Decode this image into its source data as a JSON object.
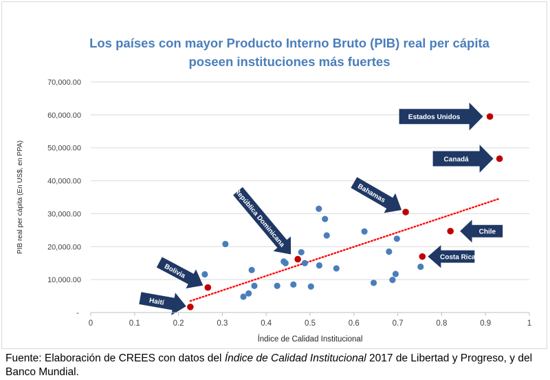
{
  "chart_data": {
    "type": "scatter",
    "title": [
      "Los países con mayor Producto Interno Bruto (PIB) real per cápita",
      "poseen instituciones más fuertes"
    ],
    "xlabel": "Índice de Calidad Institucional",
    "ylabel": "PIB real per cápita (En US$, en PPA)",
    "xlim": [
      0,
      1
    ],
    "ylim": [
      0,
      70000
    ],
    "x_ticks": [
      "0",
      "0.1",
      "0.2",
      "0.3",
      "0.4",
      "0.5",
      "0.6",
      "0.7",
      "0.8",
      "0.9",
      "1"
    ],
    "y_ticks": [
      "-",
      "10,000.00",
      "20,000.00",
      "30,000.00",
      "40,000.00",
      "50,000.00",
      "60,000.00",
      "70,000.00"
    ],
    "grid": "horizontal",
    "colors": {
      "series": "#4a7ebb",
      "highlight": "#c00000",
      "trend": "#ff0000",
      "arrow": "#1f3864",
      "title": "#4a7ebb"
    },
    "points": [
      {
        "x": 0.26,
        "y": 11600
      },
      {
        "x": 0.307,
        "y": 20800
      },
      {
        "x": 0.348,
        "y": 4800
      },
      {
        "x": 0.36,
        "y": 5800
      },
      {
        "x": 0.367,
        "y": 12900
      },
      {
        "x": 0.373,
        "y": 8100
      },
      {
        "x": 0.425,
        "y": 8100
      },
      {
        "x": 0.44,
        "y": 15500
      },
      {
        "x": 0.444,
        "y": 15000
      },
      {
        "x": 0.462,
        "y": 8500
      },
      {
        "x": 0.48,
        "y": 18300
      },
      {
        "x": 0.488,
        "y": 15000
      },
      {
        "x": 0.502,
        "y": 7900
      },
      {
        "x": 0.52,
        "y": 31500
      },
      {
        "x": 0.521,
        "y": 14300
      },
      {
        "x": 0.534,
        "y": 28400
      },
      {
        "x": 0.538,
        "y": 23400
      },
      {
        "x": 0.56,
        "y": 13400
      },
      {
        "x": 0.624,
        "y": 24600
      },
      {
        "x": 0.645,
        "y": 9000
      },
      {
        "x": 0.68,
        "y": 18500
      },
      {
        "x": 0.688,
        "y": 9900
      },
      {
        "x": 0.695,
        "y": 11700
      },
      {
        "x": 0.698,
        "y": 22400
      },
      {
        "x": 0.752,
        "y": 13900
      }
    ],
    "highlighted": [
      {
        "label": "Haití",
        "x": 0.227,
        "y": 1700
      },
      {
        "label": "Bolivia",
        "x": 0.267,
        "y": 7600
      },
      {
        "label": "República Dominicana",
        "x": 0.472,
        "y": 16200
      },
      {
        "label": "Bahamas",
        "x": 0.718,
        "y": 30500
      },
      {
        "label": "Costa Rica",
        "x": 0.756,
        "y": 17000
      },
      {
        "label": "Chile",
        "x": 0.82,
        "y": 24700
      },
      {
        "label": "Estados Unidos",
        "x": 0.91,
        "y": 59500
      },
      {
        "label": "Canadá",
        "x": 0.932,
        "y": 46700
      }
    ],
    "trendline": {
      "style": "dotted",
      "from": {
        "x": 0.227,
        "y": 3500
      },
      "to": {
        "x": 0.93,
        "y": 34500
      }
    }
  },
  "source": {
    "prefix": "Fuente: Elaboración de CREES con datos del ",
    "italic": "Índice de Calidad Institucional",
    "suffix": " 2017 de Libertad y Progreso, y del Banco Mundial."
  }
}
